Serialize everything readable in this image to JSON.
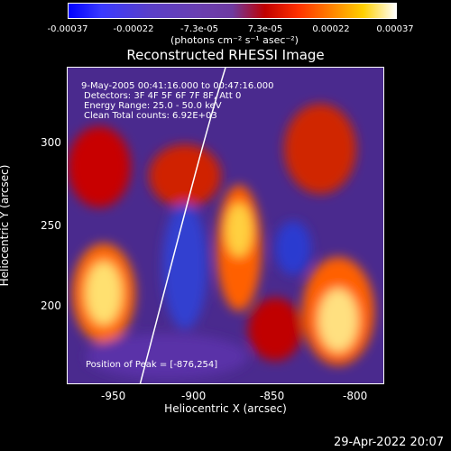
{
  "colorbar": {
    "ticks": [
      "-0.00037",
      "-0.00022",
      "-7.3e-05",
      "7.3e-05",
      "0.00022",
      "0.00037"
    ],
    "units_label": "(photons cm⁻² s⁻¹ asec⁻²)"
  },
  "title": "Reconstructed RHESSI Image",
  "annotations": {
    "time": "9-May-2005 00:41:16.000 to 00:47:16.000",
    "detectors": "Detectors: 3F 4F 5F 6F 7F 8F, Att 0",
    "energy": "Energy Range: 25.0 - 50.0 keV",
    "clean": "Clean     Total counts: 6.92E+03",
    "peak": "Position of Peak = [-876,254]"
  },
  "axes": {
    "xlabel": "Heliocentric X (arcsec)",
    "ylabel": "Heliocentric Y (arcsec)",
    "xticks": [
      "-950",
      "-900",
      "-850",
      "-800"
    ],
    "yticks": [
      "300",
      "250",
      "200"
    ]
  },
  "footer_date": "29-Apr-2022 20:07"
}
